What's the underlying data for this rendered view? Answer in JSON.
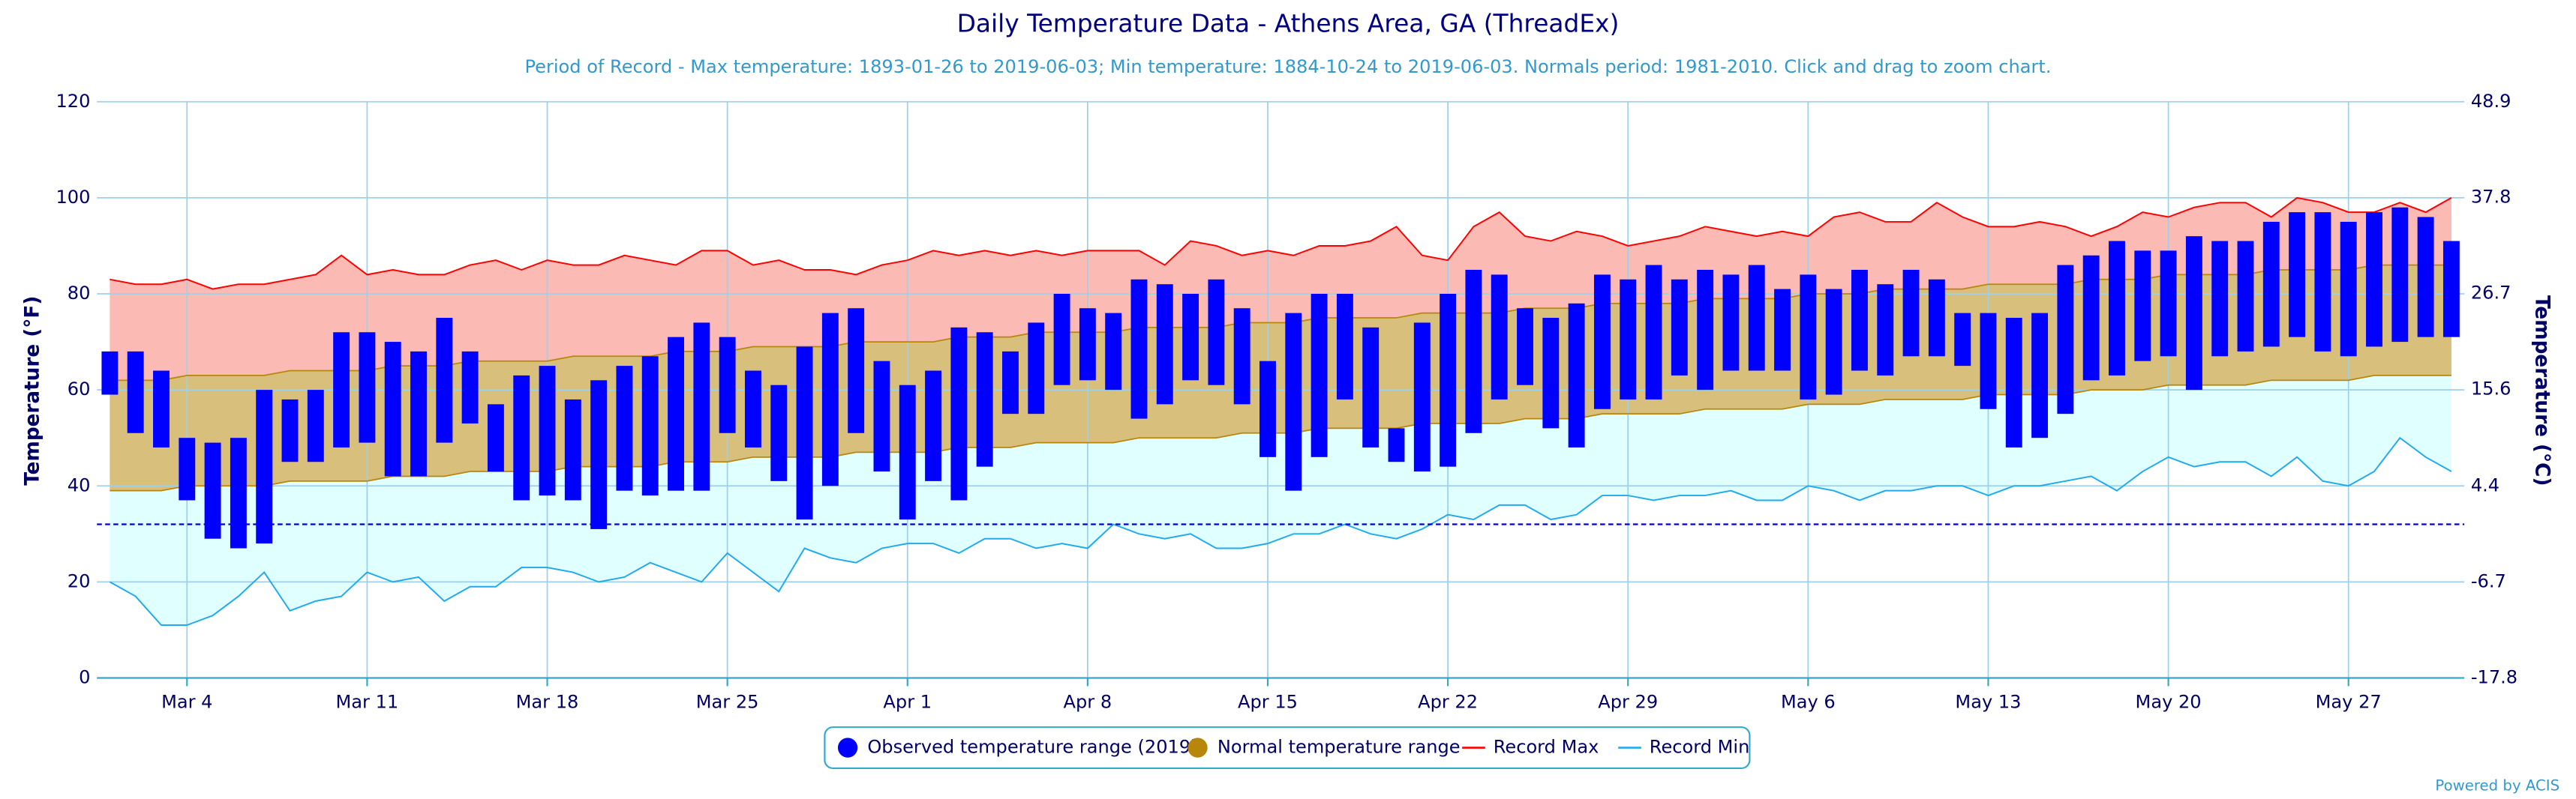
{
  "chart_data": {
    "type": "range",
    "title": "Daily Temperature Data - Athens Area, GA (ThreadEx)",
    "subtitle": "Period of Record - Max temperature: 1893-01-26 to 2019-06-03; Min temperature: 1884-10-24 to 2019-06-03. Normals period: 1981-2010. Click and drag to zoom chart.",
    "y_label": "Temperature (°F)",
    "y2_label": "Temperature (°C)",
    "credit": "Powered by ACIS",
    "categories": [
      null,
      null,
      null,
      "Mar 4",
      null,
      null,
      null,
      null,
      null,
      null,
      "Mar 11",
      null,
      null,
      null,
      null,
      null,
      null,
      "Mar 18",
      null,
      null,
      null,
      null,
      null,
      null,
      "Mar 25",
      null,
      null,
      null,
      null,
      null,
      null,
      "Apr 1",
      null,
      null,
      null,
      null,
      null,
      null,
      "Apr 8",
      null,
      null,
      null,
      null,
      null,
      null,
      "Apr 15",
      null,
      null,
      null,
      null,
      null,
      null,
      "Apr 22",
      null,
      null,
      null,
      null,
      null,
      null,
      "Apr 29",
      null,
      null,
      null,
      null,
      null,
      null,
      "May 6",
      null,
      null,
      null,
      null,
      null,
      null,
      "May 13",
      null,
      null,
      null,
      null,
      null,
      null,
      "May 20",
      null,
      null,
      null,
      null,
      null,
      null,
      "May 27",
      null,
      null,
      null,
      null
    ],
    "ylim": [
      0,
      120
    ],
    "yticks": [
      0,
      20,
      40,
      60,
      80,
      100,
      120
    ],
    "y2lim": [
      -17.8,
      48.9
    ],
    "y2ticks": [
      -17.8,
      -6.7,
      4.4,
      15.6,
      26.7,
      37.8,
      48.9
    ],
    "reference_line": 32,
    "grid": true,
    "legend": "bottom",
    "series": [
      {
        "name": "Observed temperature range (2019)",
        "color": "#0000ff",
        "high": [
          68,
          68,
          64,
          50,
          49,
          50,
          60,
          58,
          60,
          72,
          72,
          70,
          68,
          75,
          68,
          57,
          63,
          65,
          58,
          62,
          65,
          67,
          71,
          74,
          71,
          64,
          61,
          69,
          76,
          77,
          66,
          61,
          64,
          73,
          72,
          68,
          74,
          80,
          77,
          76,
          83,
          82,
          80,
          83,
          77,
          66,
          76,
          80,
          80,
          73,
          52,
          74,
          80,
          85,
          84,
          77,
          75,
          78,
          84,
          83,
          86,
          83,
          85,
          84,
          86,
          81,
          84,
          81,
          85,
          82,
          85,
          83,
          76,
          76,
          75,
          76,
          86,
          88,
          91,
          89,
          89,
          92,
          91,
          91,
          95,
          97,
          97,
          95,
          97,
          98,
          96,
          91
        ],
        "low": [
          59,
          51,
          48,
          37,
          29,
          27,
          28,
          45,
          45,
          48,
          49,
          42,
          42,
          49,
          53,
          43,
          37,
          38,
          37,
          31,
          39,
          38,
          39,
          39,
          51,
          48,
          41,
          33,
          40,
          51,
          43,
          33,
          41,
          37,
          44,
          55,
          55,
          61,
          62,
          60,
          54,
          57,
          62,
          61,
          57,
          46,
          39,
          46,
          58,
          48,
          45,
          43,
          44,
          51,
          58,
          61,
          52,
          48,
          56,
          58,
          58,
          63,
          60,
          64,
          64,
          64,
          58,
          59,
          64,
          63,
          67,
          67,
          65,
          56,
          48,
          50,
          55,
          62,
          63,
          66,
          67,
          60,
          67,
          68,
          69,
          71,
          68,
          67,
          69,
          70,
          71,
          71
        ]
      },
      {
        "name": "Normal temperature range",
        "color": "#b8860b",
        "fill": "#d9bf7c",
        "high": [
          62,
          62,
          62,
          63,
          63,
          63,
          63,
          64,
          64,
          64,
          64,
          65,
          65,
          65,
          66,
          66,
          66,
          66,
          67,
          67,
          67,
          67,
          68,
          68,
          68,
          69,
          69,
          69,
          69,
          70,
          70,
          70,
          70,
          71,
          71,
          71,
          72,
          72,
          72,
          72,
          73,
          73,
          73,
          73,
          74,
          74,
          74,
          75,
          75,
          75,
          75,
          76,
          76,
          76,
          76,
          77,
          77,
          77,
          78,
          78,
          78,
          78,
          79,
          79,
          79,
          79,
          80,
          80,
          80,
          81,
          81,
          81,
          81,
          82,
          82,
          82,
          82,
          83,
          83,
          83,
          84,
          84,
          84,
          84,
          85,
          85,
          85,
          85,
          86,
          86,
          86,
          86
        ],
        "low": [
          39,
          39,
          39,
          40,
          40,
          40,
          40,
          41,
          41,
          41,
          41,
          42,
          42,
          42,
          43,
          43,
          43,
          43,
          44,
          44,
          44,
          44,
          45,
          45,
          45,
          46,
          46,
          46,
          46,
          47,
          47,
          47,
          47,
          48,
          48,
          48,
          49,
          49,
          49,
          49,
          50,
          50,
          50,
          50,
          51,
          51,
          51,
          52,
          52,
          52,
          52,
          53,
          53,
          53,
          53,
          54,
          54,
          54,
          55,
          55,
          55,
          55,
          56,
          56,
          56,
          56,
          57,
          57,
          57,
          58,
          58,
          58,
          58,
          59,
          59,
          59,
          59,
          60,
          60,
          60,
          61,
          61,
          61,
          61,
          62,
          62,
          62,
          62,
          63,
          63,
          63,
          63
        ]
      },
      {
        "name": "Record Max",
        "color": "#ff0000",
        "fill": "#fbbab4",
        "values": [
          83,
          82,
          82,
          83,
          81,
          82,
          82,
          83,
          84,
          88,
          84,
          85,
          84,
          84,
          86,
          87,
          85,
          87,
          86,
          86,
          88,
          87,
          86,
          89,
          89,
          86,
          87,
          85,
          85,
          84,
          86,
          87,
          89,
          88,
          89,
          88,
          89,
          88,
          89,
          89,
          89,
          86,
          91,
          90,
          88,
          89,
          88,
          90,
          90,
          91,
          94,
          88,
          87,
          94,
          97,
          92,
          91,
          93,
          92,
          90,
          91,
          92,
          94,
          93,
          92,
          93,
          92,
          96,
          97,
          95,
          95,
          99,
          96,
          94,
          94,
          95,
          94,
          92,
          94,
          97,
          96,
          98,
          99,
          99,
          96,
          100,
          99,
          97,
          97,
          99,
          97,
          100
        ]
      },
      {
        "name": "Record Min",
        "color": "#22aaee",
        "fill": "#e0ffff",
        "values": [
          20,
          17,
          11,
          11,
          13,
          17,
          22,
          14,
          16,
          17,
          22,
          20,
          21,
          16,
          19,
          19,
          23,
          23,
          22,
          20,
          21,
          24,
          22,
          20,
          26,
          22,
          18,
          27,
          25,
          24,
          27,
          28,
          28,
          26,
          29,
          29,
          27,
          28,
          27,
          32,
          30,
          29,
          30,
          27,
          27,
          28,
          30,
          30,
          32,
          30,
          29,
          31,
          34,
          33,
          36,
          36,
          33,
          34,
          38,
          38,
          37,
          38,
          38,
          39,
          37,
          37,
          40,
          39,
          37,
          39,
          39,
          40,
          40,
          38,
          40,
          40,
          41,
          42,
          39,
          43,
          46,
          44,
          45,
          45,
          42,
          46,
          41,
          40,
          43,
          50,
          46,
          43
        ]
      }
    ]
  }
}
